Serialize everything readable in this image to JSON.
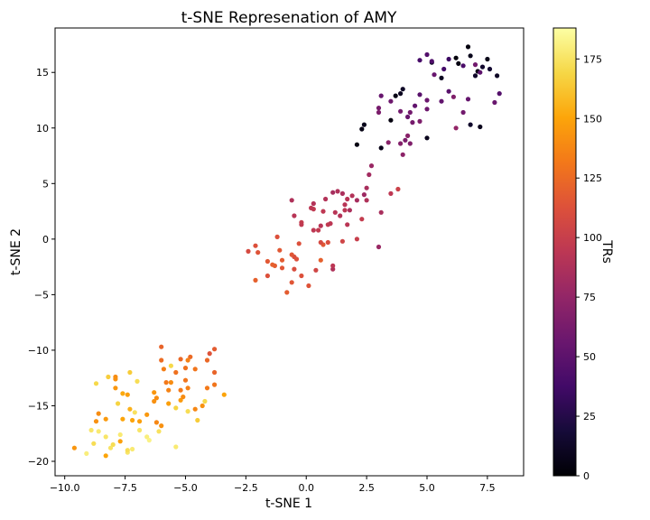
{
  "chart_data": {
    "type": "scatter",
    "title": "t-SNE Represenation of AMY",
    "xlabel": "t-SNE 1",
    "ylabel": "t-SNE 2",
    "xlim": [
      -10.4,
      9.0
    ],
    "ylim": [
      -21.3,
      19.0
    ],
    "xticks": [
      -10.0,
      -7.5,
      -5.0,
      -2.5,
      0.0,
      2.5,
      5.0,
      7.5
    ],
    "xtick_labels": [
      "−10.0",
      "−7.5",
      "−5.0",
      "−2.5",
      "0.0",
      "2.5",
      "5.0",
      "7.5"
    ],
    "yticks": [
      -20,
      -15,
      -10,
      -5,
      0,
      5,
      10,
      15
    ],
    "ytick_labels": [
      "−20",
      "−15",
      "−10",
      "−5",
      "0",
      "5",
      "10",
      "15"
    ],
    "grid": false,
    "colormap": "inferno",
    "colorbar": {
      "label": "TRs",
      "min": 0,
      "max": 188,
      "ticks": [
        0,
        25,
        50,
        75,
        100,
        125,
        150,
        175
      ],
      "tick_labels": [
        "0",
        "25",
        "50",
        "75",
        "100",
        "125",
        "150",
        "175"
      ]
    },
    "points": [
      [
        2.1,
        8.5,
        5
      ],
      [
        2.3,
        9.9,
        6
      ],
      [
        2.4,
        10.3,
        8
      ],
      [
        3.1,
        8.2,
        7
      ],
      [
        3.5,
        10.7,
        4
      ],
      [
        3.7,
        12.9,
        6
      ],
      [
        3.9,
        13.1,
        10
      ],
      [
        4.0,
        13.5,
        12
      ],
      [
        5.0,
        9.1,
        9
      ],
      [
        5.2,
        15.9,
        11
      ],
      [
        5.6,
        14.5,
        10
      ],
      [
        6.2,
        16.3,
        3
      ],
      [
        6.3,
        15.8,
        5
      ],
      [
        6.7,
        17.3,
        4
      ],
      [
        6.8,
        16.5,
        8
      ],
      [
        7.0,
        14.7,
        14
      ],
      [
        7.1,
        15.1,
        6
      ],
      [
        7.2,
        10.1,
        9
      ],
      [
        7.3,
        15.5,
        15
      ],
      [
        7.5,
        16.2,
        7
      ],
      [
        7.6,
        15.3,
        16
      ],
      [
        7.9,
        14.7,
        12
      ],
      [
        6.8,
        10.3,
        14
      ],
      [
        4.7,
        16.1,
        40
      ],
      [
        5.0,
        16.6,
        45
      ],
      [
        5.2,
        16.0,
        44
      ],
      [
        5.3,
        14.8,
        55
      ],
      [
        5.7,
        15.3,
        38
      ],
      [
        5.9,
        13.3,
        48
      ],
      [
        6.5,
        15.6,
        42
      ],
      [
        7.0,
        15.7,
        60
      ],
      [
        7.2,
        15.0,
        50
      ],
      [
        7.8,
        12.3,
        56
      ],
      [
        8.0,
        13.1,
        46
      ],
      [
        5.9,
        16.2,
        35
      ],
      [
        6.5,
        11.4,
        60
      ],
      [
        6.7,
        12.6,
        54
      ],
      [
        6.1,
        12.8,
        66
      ],
      [
        6.2,
        10.0,
        75
      ],
      [
        5.6,
        12.4,
        52
      ],
      [
        5.0,
        12.5,
        57
      ],
      [
        5.0,
        11.7,
        58
      ],
      [
        4.7,
        13.0,
        48
      ],
      [
        4.5,
        12.0,
        52
      ],
      [
        4.3,
        11.4,
        60
      ],
      [
        4.4,
        10.5,
        62
      ],
      [
        4.7,
        10.6,
        65
      ],
      [
        4.2,
        11.0,
        56
      ],
      [
        3.9,
        11.5,
        60
      ],
      [
        3.5,
        12.4,
        58
      ],
      [
        3.0,
        11.8,
        62
      ],
      [
        3.1,
        12.9,
        55
      ],
      [
        3.0,
        11.4,
        64
      ],
      [
        3.9,
        8.6,
        68
      ],
      [
        4.1,
        8.9,
        64
      ],
      [
        4.2,
        9.3,
        70
      ],
      [
        4.3,
        8.6,
        66
      ],
      [
        4.0,
        7.6,
        72
      ],
      [
        3.4,
        8.7,
        70
      ],
      [
        2.7,
        6.6,
        78
      ],
      [
        2.6,
        5.8,
        82
      ],
      [
        2.5,
        4.6,
        85
      ],
      [
        2.4,
        4.0,
        80
      ],
      [
        2.5,
        3.5,
        88
      ],
      [
        2.1,
        3.5,
        84
      ],
      [
        1.9,
        3.9,
        90
      ],
      [
        1.7,
        3.6,
        92
      ],
      [
        1.5,
        4.1,
        86
      ],
      [
        1.3,
        4.3,
        88
      ],
      [
        1.1,
        4.2,
        84
      ],
      [
        0.8,
        3.6,
        90
      ],
      [
        0.7,
        2.5,
        95
      ],
      [
        0.9,
        1.3,
        96
      ],
      [
        0.6,
        1.2,
        92
      ],
      [
        0.3,
        3.2,
        90
      ],
      [
        0.3,
        2.7,
        96
      ],
      [
        0.2,
        2.8,
        94
      ],
      [
        -0.2,
        1.5,
        98
      ],
      [
        -0.2,
        1.3,
        96
      ],
      [
        -0.5,
        2.1,
        92
      ],
      [
        -0.6,
        3.5,
        88
      ],
      [
        0.5,
        0.8,
        97
      ],
      [
        0.3,
        0.8,
        95
      ],
      [
        1.0,
        1.4,
        94
      ],
      [
        1.2,
        2.4,
        92
      ],
      [
        1.4,
        2.1,
        90
      ],
      [
        1.6,
        3.1,
        92
      ],
      [
        1.6,
        2.6,
        94
      ],
      [
        1.7,
        1.3,
        93
      ],
      [
        1.8,
        2.6,
        86
      ],
      [
        2.3,
        1.8,
        98
      ],
      [
        3.0,
        -0.7,
        78
      ],
      [
        3.1,
        2.4,
        85
      ],
      [
        3.5,
        4.1,
        95
      ],
      [
        3.8,
        4.5,
        102
      ],
      [
        1.1,
        -2.7,
        88
      ],
      [
        1.1,
        -2.4,
        94
      ],
      [
        2.1,
        0.0,
        100
      ],
      [
        1.5,
        -0.2,
        104
      ],
      [
        -0.3,
        -0.4,
        112
      ],
      [
        -0.5,
        -1.6,
        110
      ],
      [
        -0.6,
        -1.4,
        115
      ],
      [
        -0.5,
        -2.7,
        110
      ],
      [
        -0.4,
        -1.8,
        112
      ],
      [
        -0.8,
        -4.8,
        118
      ],
      [
        -0.6,
        -3.9,
        115
      ],
      [
        -0.2,
        -3.3,
        112
      ],
      [
        0.1,
        -4.2,
        114
      ],
      [
        0.6,
        -1.9,
        120
      ],
      [
        0.7,
        -0.5,
        116
      ],
      [
        0.9,
        -0.3,
        110
      ],
      [
        0.6,
        -0.3,
        108
      ],
      [
        0.4,
        -2.8,
        105
      ],
      [
        -1.3,
        -2.4,
        118
      ],
      [
        -1.4,
        -2.3,
        120
      ],
      [
        -1.6,
        -2.0,
        116
      ],
      [
        -1.6,
        -3.3,
        112
      ],
      [
        -2.1,
        -0.6,
        112
      ],
      [
        -2.1,
        -3.7,
        120
      ],
      [
        -2.4,
        -1.1,
        108
      ],
      [
        -2.0,
        -1.2,
        114
      ],
      [
        -1.1,
        -1.0,
        116
      ],
      [
        -1.2,
        0.2,
        112
      ],
      [
        -1.0,
        -1.9,
        118
      ],
      [
        -1.0,
        -2.6,
        115
      ],
      [
        -3.8,
        -9.9,
        118
      ],
      [
        -4.0,
        -10.3,
        114
      ],
      [
        -3.8,
        -12.0,
        122
      ],
      [
        -3.8,
        -13.1,
        130
      ],
      [
        -4.1,
        -10.9,
        124
      ],
      [
        -4.1,
        -13.4,
        132
      ],
      [
        -4.6,
        -11.7,
        130
      ],
      [
        -4.8,
        -10.6,
        125
      ],
      [
        -4.9,
        -10.9,
        135
      ],
      [
        -5.0,
        -11.6,
        128
      ],
      [
        -5.0,
        -12.7,
        130
      ],
      [
        -5.2,
        -10.8,
        124
      ],
      [
        -5.2,
        -13.6,
        132
      ],
      [
        -5.4,
        -12.0,
        128
      ],
      [
        -5.6,
        -12.9,
        140
      ],
      [
        -5.7,
        -13.6,
        136
      ],
      [
        -5.8,
        -12.9,
        132
      ],
      [
        -5.9,
        -11.7,
        134
      ],
      [
        -6.0,
        -10.9,
        126
      ],
      [
        -6.0,
        -9.7,
        122
      ],
      [
        -6.2,
        -14.3,
        140
      ],
      [
        -6.3,
        -14.6,
        142
      ],
      [
        -6.3,
        -13.8,
        144
      ],
      [
        -6.2,
        -16.5,
        138
      ],
      [
        -6.0,
        -16.8,
        142
      ],
      [
        -5.7,
        -14.8,
        148
      ],
      [
        -5.2,
        -14.5,
        146
      ],
      [
        -5.1,
        -14.2,
        140
      ],
      [
        -4.9,
        -13.4,
        135
      ],
      [
        -4.6,
        -15.3,
        138
      ],
      [
        -4.3,
        -15.0,
        142
      ],
      [
        -3.4,
        -14.0,
        150
      ],
      [
        -6.6,
        -15.8,
        145
      ],
      [
        -6.9,
        -16.4,
        148
      ],
      [
        -7.2,
        -16.3,
        150
      ],
      [
        -7.3,
        -15.3,
        155
      ],
      [
        -7.4,
        -14.0,
        148
      ],
      [
        -7.6,
        -13.9,
        152
      ],
      [
        -7.6,
        -16.2,
        150
      ],
      [
        -7.7,
        -18.2,
        148
      ],
      [
        -7.9,
        -12.4,
        140
      ],
      [
        -7.9,
        -12.6,
        142
      ],
      [
        -7.9,
        -13.4,
        144
      ],
      [
        -8.3,
        -16.2,
        146
      ],
      [
        -8.6,
        -15.7,
        140
      ],
      [
        -8.7,
        -16.4,
        142
      ],
      [
        -9.6,
        -18.8,
        144
      ],
      [
        -8.3,
        -19.5,
        150
      ],
      [
        -5.6,
        -11.4,
        170
      ],
      [
        -5.4,
        -15.2,
        168
      ],
      [
        -4.9,
        -15.5,
        172
      ],
      [
        -4.5,
        -16.3,
        165
      ],
      [
        -4.2,
        -14.6,
        170
      ],
      [
        -5.4,
        -18.7,
        178
      ],
      [
        -6.1,
        -17.3,
        174
      ],
      [
        -6.6,
        -17.8,
        180
      ],
      [
        -6.9,
        -17.2,
        176
      ],
      [
        -7.0,
        -12.8,
        172
      ],
      [
        -7.3,
        -12.0,
        165
      ],
      [
        -7.4,
        -19.2,
        176
      ],
      [
        -7.4,
        -19.0,
        172
      ],
      [
        -7.7,
        -17.6,
        178
      ],
      [
        -7.8,
        -14.8,
        168
      ],
      [
        -8.0,
        -18.5,
        172
      ],
      [
        -8.1,
        -18.8,
        175
      ],
      [
        -8.2,
        -12.4,
        166
      ],
      [
        -8.3,
        -17.8,
        176
      ],
      [
        -8.6,
        -17.3,
        178
      ],
      [
        -8.7,
        -13.0,
        170
      ],
      [
        -8.8,
        -18.4,
        172
      ],
      [
        -8.9,
        -17.2,
        176
      ],
      [
        -9.1,
        -19.3,
        180
      ],
      [
        -7.1,
        -15.6,
        174
      ],
      [
        -6.5,
        -18.1,
        182
      ],
      [
        -7.2,
        -18.9,
        178
      ]
    ]
  }
}
